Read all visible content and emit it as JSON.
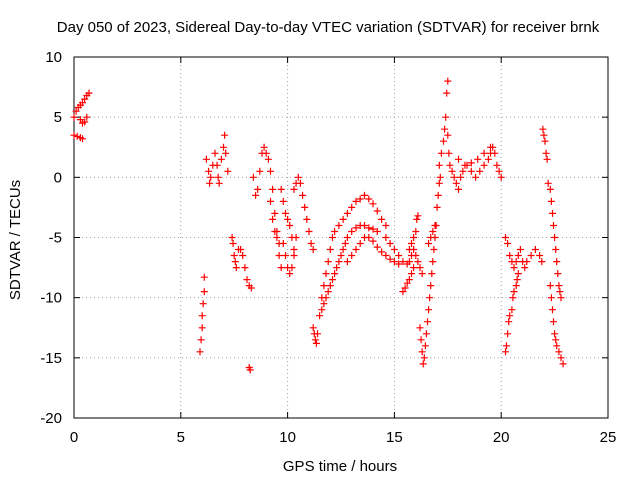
{
  "chart_data": {
    "type": "scatter",
    "title": "Day 050 of 2023, Sidereal Day-to-day VTEC variation (SDTVAR) for receiver brnk",
    "xlabel": "GPS time / hours",
    "ylabel": "SDTVAR / TECUs",
    "xlim": [
      0,
      25
    ],
    "ylim": [
      -20,
      10
    ],
    "xticks": [
      0,
      5,
      10,
      15,
      20,
      25
    ],
    "yticks": [
      -20,
      -15,
      -10,
      -5,
      0,
      5,
      10
    ],
    "grid": true,
    "marker": "+",
    "marker_color": "#ff0000",
    "series": [
      {
        "points": [
          [
            0.0,
            3.5
          ],
          [
            0.15,
            3.4
          ],
          [
            0.3,
            3.3
          ],
          [
            0.4,
            3.2
          ],
          [
            0.0,
            5.0
          ],
          [
            0.1,
            5.5
          ],
          [
            0.2,
            5.8
          ],
          [
            0.3,
            6.0
          ],
          [
            0.4,
            6.2
          ],
          [
            0.5,
            6.5
          ],
          [
            0.6,
            6.8
          ],
          [
            0.7,
            7.0
          ],
          [
            0.3,
            4.8
          ],
          [
            0.4,
            4.5
          ],
          [
            0.5,
            4.6
          ],
          [
            0.6,
            5.0
          ],
          [
            5.9,
            -14.5
          ],
          [
            5.95,
            -13.5
          ],
          [
            6.0,
            -12.5
          ],
          [
            6.0,
            -11.5
          ],
          [
            6.05,
            -10.5
          ],
          [
            6.1,
            -9.5
          ],
          [
            6.1,
            -8.3
          ],
          [
            6.2,
            1.5
          ],
          [
            6.3,
            0.5
          ],
          [
            6.35,
            -0.5
          ],
          [
            6.4,
            0.0
          ],
          [
            6.5,
            1.0
          ],
          [
            6.6,
            2.0
          ],
          [
            6.7,
            1.0
          ],
          [
            6.75,
            0.0
          ],
          [
            6.8,
            -0.5
          ],
          [
            6.9,
            1.5
          ],
          [
            7.0,
            2.5
          ],
          [
            7.05,
            3.5
          ],
          [
            7.1,
            2.0
          ],
          [
            7.2,
            0.5
          ],
          [
            7.4,
            -5.0
          ],
          [
            7.45,
            -5.5
          ],
          [
            7.5,
            -6.5
          ],
          [
            7.55,
            -7.0
          ],
          [
            7.6,
            -7.5
          ],
          [
            7.7,
            -6.0
          ],
          [
            7.8,
            -6.0
          ],
          [
            7.9,
            -6.5
          ],
          [
            8.0,
            -7.5
          ],
          [
            8.1,
            -8.5
          ],
          [
            8.2,
            -9.0
          ],
          [
            8.3,
            -9.2
          ],
          [
            8.2,
            -15.8
          ],
          [
            8.25,
            -16.0
          ],
          [
            8.4,
            0.0
          ],
          [
            8.5,
            -1.5
          ],
          [
            8.6,
            -1.0
          ],
          [
            8.7,
            0.5
          ],
          [
            8.8,
            2.0
          ],
          [
            8.9,
            2.5
          ],
          [
            9.0,
            2.0
          ],
          [
            9.1,
            1.5
          ],
          [
            9.2,
            0.5
          ],
          [
            9.3,
            -1.0
          ],
          [
            9.4,
            -3.0
          ],
          [
            9.5,
            -4.5
          ],
          [
            9.6,
            -5.5
          ],
          [
            9.2,
            -2.0
          ],
          [
            9.3,
            -3.5
          ],
          [
            9.4,
            -4.5
          ],
          [
            9.5,
            -5.0
          ],
          [
            9.6,
            -6.5
          ],
          [
            9.7,
            -7.5
          ],
          [
            9.7,
            -1.0
          ],
          [
            9.8,
            -2.0
          ],
          [
            9.9,
            -3.0
          ],
          [
            10.0,
            -3.5
          ],
          [
            10.1,
            -4.0
          ],
          [
            10.2,
            -5.0
          ],
          [
            10.3,
            -6.0
          ],
          [
            9.8,
            -5.5
          ],
          [
            9.9,
            -6.5
          ],
          [
            10.0,
            -7.5
          ],
          [
            10.1,
            -8.0
          ],
          [
            10.2,
            -7.5
          ],
          [
            10.3,
            -6.5
          ],
          [
            10.4,
            -5.0
          ],
          [
            10.3,
            -1.0
          ],
          [
            10.4,
            -0.5
          ],
          [
            10.5,
            0.0
          ],
          [
            10.6,
            -0.5
          ],
          [
            10.7,
            -1.5
          ],
          [
            10.8,
            -2.5
          ],
          [
            10.9,
            -3.5
          ],
          [
            11.0,
            -4.5
          ],
          [
            11.1,
            -5.5
          ],
          [
            11.2,
            -6.0
          ],
          [
            11.2,
            -12.5
          ],
          [
            11.25,
            -13.0
          ],
          [
            11.3,
            -13.5
          ],
          [
            11.35,
            -13.8
          ],
          [
            11.4,
            -13.0
          ],
          [
            11.5,
            -11.5
          ],
          [
            11.6,
            -10.0
          ],
          [
            11.7,
            -9.0
          ],
          [
            11.8,
            -8.0
          ],
          [
            11.9,
            -7.0
          ],
          [
            12.0,
            -6.0
          ],
          [
            12.1,
            -5.0
          ],
          [
            11.6,
            -11.0
          ],
          [
            11.7,
            -10.5
          ],
          [
            11.8,
            -10.0
          ],
          [
            11.9,
            -9.5
          ],
          [
            12.0,
            -9.0
          ],
          [
            12.1,
            -8.5
          ],
          [
            12.2,
            -8.0
          ],
          [
            12.3,
            -7.5
          ],
          [
            12.4,
            -7.0
          ],
          [
            12.5,
            -6.5
          ],
          [
            12.6,
            -6.0
          ],
          [
            12.7,
            -5.5
          ],
          [
            12.8,
            -5.0
          ],
          [
            13.0,
            -4.5
          ],
          [
            13.2,
            -4.2
          ],
          [
            13.4,
            -4.0
          ],
          [
            13.6,
            -4.0
          ],
          [
            13.8,
            -4.2
          ],
          [
            14.0,
            -4.3
          ],
          [
            14.2,
            -4.5
          ],
          [
            12.2,
            -4.5
          ],
          [
            12.4,
            -4.0
          ],
          [
            12.6,
            -3.5
          ],
          [
            12.8,
            -3.0
          ],
          [
            13.0,
            -2.5
          ],
          [
            13.2,
            -2.0
          ],
          [
            13.4,
            -1.8
          ],
          [
            13.6,
            -1.5
          ],
          [
            13.8,
            -1.8
          ],
          [
            14.0,
            -2.2
          ],
          [
            14.2,
            -2.8
          ],
          [
            14.4,
            -3.5
          ],
          [
            14.6,
            -4.0
          ],
          [
            12.8,
            -7.0
          ],
          [
            13.0,
            -6.5
          ],
          [
            13.2,
            -6.0
          ],
          [
            13.4,
            -5.5
          ],
          [
            13.6,
            -5.0
          ],
          [
            13.8,
            -5.0
          ],
          [
            14.0,
            -5.3
          ],
          [
            14.2,
            -5.8
          ],
          [
            14.4,
            -6.2
          ],
          [
            14.6,
            -6.5
          ],
          [
            14.8,
            -6.8
          ],
          [
            15.0,
            -7.0
          ],
          [
            15.2,
            -7.2
          ],
          [
            14.6,
            -5.0
          ],
          [
            14.8,
            -5.5
          ],
          [
            15.0,
            -6.0
          ],
          [
            15.2,
            -6.5
          ],
          [
            15.4,
            -7.0
          ],
          [
            15.6,
            -7.2
          ],
          [
            15.4,
            -9.5
          ],
          [
            15.5,
            -9.2
          ],
          [
            15.6,
            -8.8
          ],
          [
            15.7,
            -8.5
          ],
          [
            15.8,
            -8.0
          ],
          [
            15.9,
            -7.5
          ],
          [
            15.7,
            -6.0
          ],
          [
            15.8,
            -5.5
          ],
          [
            15.9,
            -5.0
          ],
          [
            16.0,
            -4.5
          ],
          [
            16.05,
            -3.5
          ],
          [
            16.1,
            -3.2
          ],
          [
            15.7,
            -7.0
          ],
          [
            15.8,
            -6.5
          ],
          [
            15.9,
            -6.0
          ],
          [
            16.0,
            -6.5
          ],
          [
            16.1,
            -7.0
          ],
          [
            16.2,
            -7.5
          ],
          [
            16.3,
            -8.0
          ],
          [
            16.2,
            -12.5
          ],
          [
            16.25,
            -13.5
          ],
          [
            16.3,
            -14.5
          ],
          [
            16.35,
            -15.5
          ],
          [
            16.4,
            -15.0
          ],
          [
            16.45,
            -14.0
          ],
          [
            16.5,
            -13.0
          ],
          [
            16.55,
            -12.0
          ],
          [
            16.6,
            -11.0
          ],
          [
            16.65,
            -10.0
          ],
          [
            16.7,
            -9.0
          ],
          [
            16.75,
            -8.0
          ],
          [
            16.8,
            -7.0
          ],
          [
            16.85,
            -6.0
          ],
          [
            16.9,
            -5.0
          ],
          [
            16.95,
            -4.0
          ],
          [
            17.0,
            -2.5
          ],
          [
            17.05,
            -1.5
          ],
          [
            17.1,
            -0.5
          ],
          [
            17.15,
            0.0
          ],
          [
            16.6,
            -5.5
          ],
          [
            16.7,
            -5.0
          ],
          [
            16.8,
            -4.5
          ],
          [
            16.9,
            -4.0
          ],
          [
            17.1,
            1.0
          ],
          [
            17.2,
            2.0
          ],
          [
            17.3,
            3.0
          ],
          [
            17.35,
            4.0
          ],
          [
            17.4,
            5.0
          ],
          [
            17.45,
            7.0
          ],
          [
            17.5,
            8.0
          ],
          [
            17.5,
            3.5
          ],
          [
            17.55,
            2.0
          ],
          [
            17.6,
            1.0
          ],
          [
            17.7,
            0.5
          ],
          [
            17.8,
            0.0
          ],
          [
            17.9,
            -0.5
          ],
          [
            18.0,
            -1.0
          ],
          [
            18.1,
            0.0
          ],
          [
            18.2,
            0.5
          ],
          [
            18.4,
            1.0
          ],
          [
            18.6,
            0.5
          ],
          [
            18.8,
            0.0
          ],
          [
            19.0,
            0.5
          ],
          [
            19.2,
            1.0
          ],
          [
            19.4,
            1.5
          ],
          [
            19.5,
            2.0
          ],
          [
            19.6,
            2.5
          ],
          [
            19.7,
            2.0
          ],
          [
            19.8,
            1.0
          ],
          [
            19.9,
            0.5
          ],
          [
            20.0,
            0.0
          ],
          [
            18.0,
            1.5
          ],
          [
            18.3,
            1.0
          ],
          [
            18.6,
            1.2
          ],
          [
            18.9,
            1.5
          ],
          [
            19.2,
            2.0
          ],
          [
            19.5,
            2.5
          ],
          [
            20.2,
            -14.5
          ],
          [
            20.25,
            -14.0
          ],
          [
            20.3,
            -13.0
          ],
          [
            20.35,
            -12.0
          ],
          [
            20.4,
            -11.5
          ],
          [
            20.5,
            -11.0
          ],
          [
            20.55,
            -10.0
          ],
          [
            20.6,
            -9.5
          ],
          [
            20.7,
            -9.0
          ],
          [
            20.75,
            -8.5
          ],
          [
            20.8,
            -8.0
          ],
          [
            20.2,
            -5.0
          ],
          [
            20.3,
            -5.5
          ],
          [
            20.4,
            -6.5
          ],
          [
            20.5,
            -7.0
          ],
          [
            20.6,
            -7.5
          ],
          [
            20.7,
            -7.0
          ],
          [
            20.8,
            -6.5
          ],
          [
            20.9,
            -6.0
          ],
          [
            21.0,
            -7.0
          ],
          [
            21.1,
            -7.5
          ],
          [
            21.2,
            -7.0
          ],
          [
            21.4,
            -6.5
          ],
          [
            21.6,
            -6.0
          ],
          [
            21.8,
            -6.5
          ],
          [
            21.9,
            -7.0
          ],
          [
            21.95,
            4.0
          ],
          [
            22.0,
            3.5
          ],
          [
            22.05,
            3.0
          ],
          [
            22.1,
            2.0
          ],
          [
            22.15,
            1.5
          ],
          [
            22.2,
            -0.5
          ],
          [
            22.3,
            -1.0
          ],
          [
            22.35,
            -2.0
          ],
          [
            22.4,
            -3.0
          ],
          [
            22.45,
            -4.0
          ],
          [
            22.5,
            -5.0
          ],
          [
            22.55,
            -6.0
          ],
          [
            22.6,
            -7.0
          ],
          [
            22.65,
            -8.0
          ],
          [
            22.7,
            -9.0
          ],
          [
            22.75,
            -9.5
          ],
          [
            22.8,
            -10.0
          ],
          [
            22.3,
            -9.0
          ],
          [
            22.35,
            -10.0
          ],
          [
            22.4,
            -11.0
          ],
          [
            22.45,
            -12.0
          ],
          [
            22.5,
            -13.0
          ],
          [
            22.55,
            -13.5
          ],
          [
            22.6,
            -14.0
          ],
          [
            22.7,
            -14.5
          ],
          [
            22.8,
            -15.0
          ],
          [
            22.9,
            -15.5
          ]
        ]
      }
    ]
  }
}
